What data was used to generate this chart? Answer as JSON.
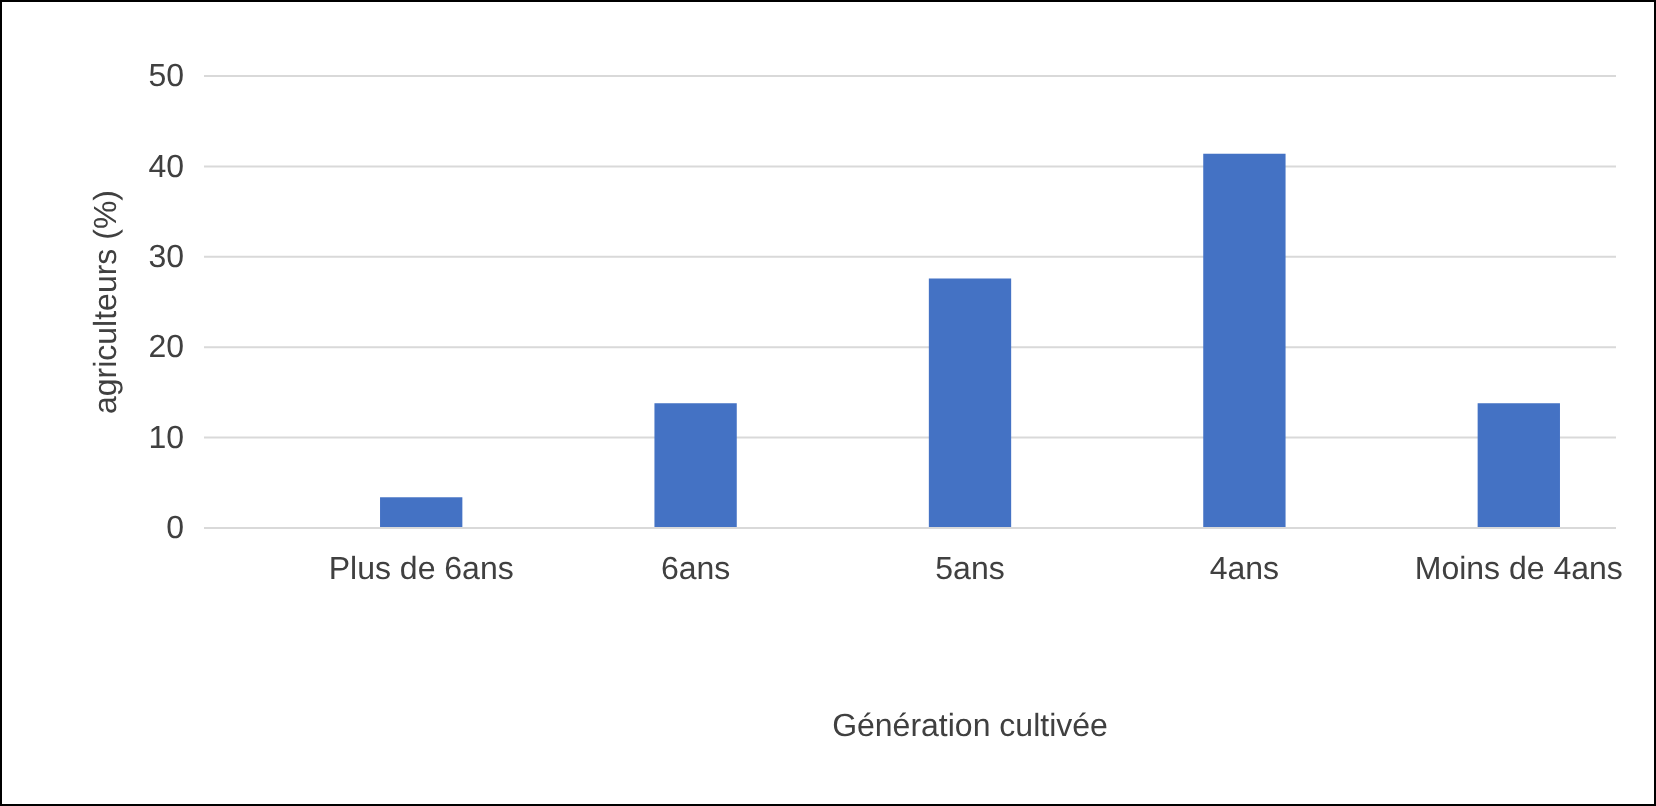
{
  "chart_data": {
    "type": "bar",
    "xlabel": "Génération cultivée",
    "ylabel": "agriculteurs (%)",
    "categories": [
      "Plus de 6ans",
      "6ans",
      "5ans",
      "4ans",
      "Moins de 4ans"
    ],
    "values": [
      3.4,
      13.8,
      27.6,
      41.4,
      13.8
    ],
    "color": "#4472c4",
    "ylim": [
      0,
      50
    ],
    "yticks": [
      0,
      10,
      20,
      30,
      40,
      50
    ],
    "grid": "y"
  }
}
